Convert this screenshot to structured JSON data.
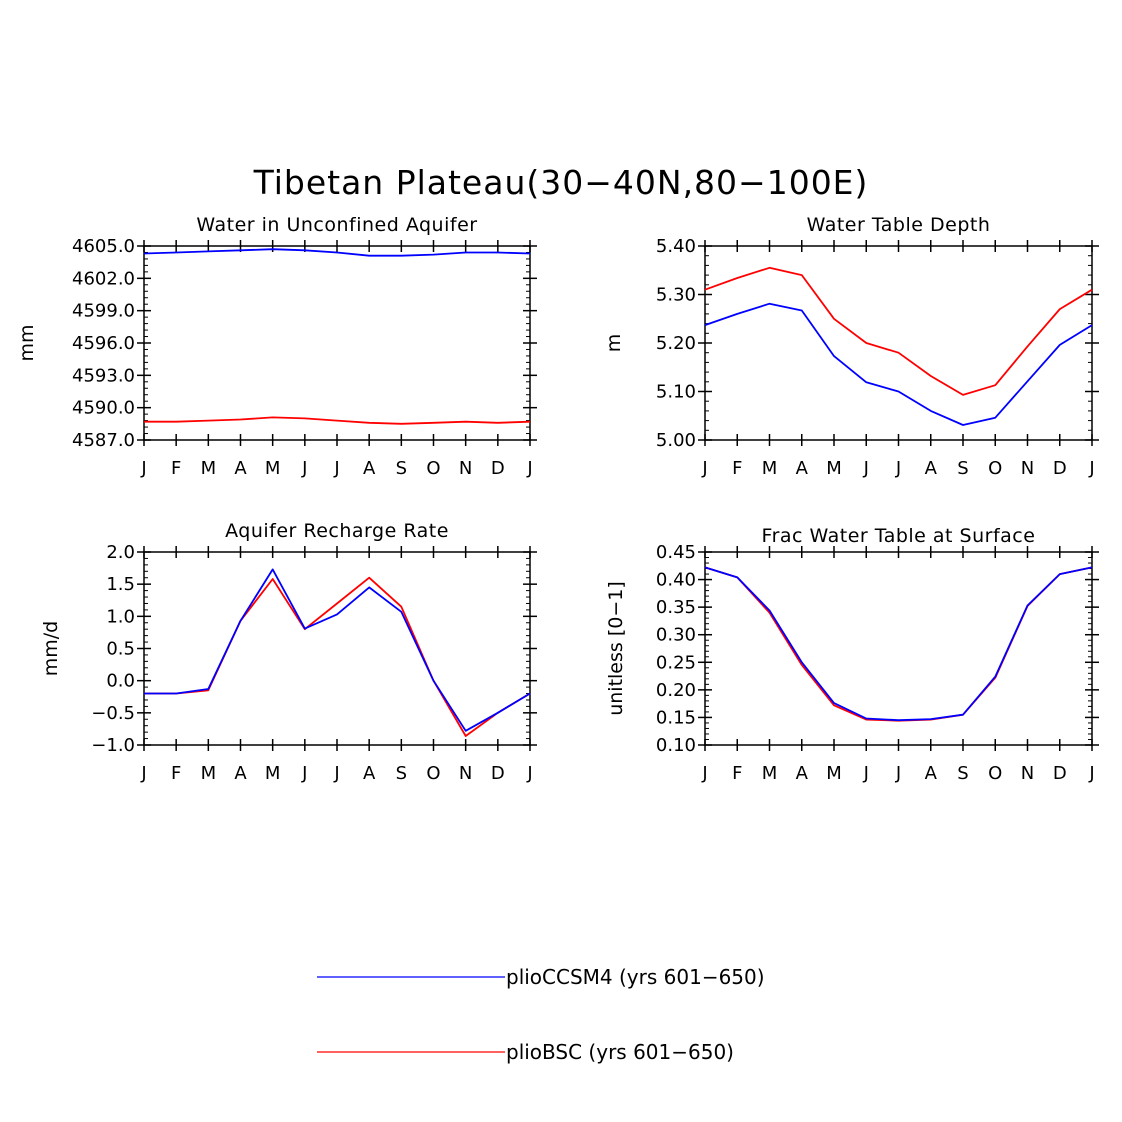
{
  "figure": {
    "title": "Tibetan Plateau(30−40N,80−100E)"
  },
  "colors": {
    "plioCCSM4": "#0000ff",
    "plioBSC": "#ff0000",
    "axes": "#000000"
  },
  "legend": {
    "items": [
      {
        "key": "plioCCSM4",
        "label": "plioCCSM4 (yrs 601−650)"
      },
      {
        "key": "plioBSC",
        "label": "plioBSC (yrs 601−650)"
      }
    ]
  },
  "chart_data": [
    {
      "type": "line",
      "title": "Water in Unconfined Aquifer",
      "ylabel": "mm",
      "xlabel": "",
      "categories": [
        "J",
        "F",
        "M",
        "A",
        "M",
        "J",
        "J",
        "A",
        "S",
        "O",
        "N",
        "D",
        "J"
      ],
      "ylim": [
        4587.0,
        4605.0
      ],
      "yticks": [
        4587.0,
        4590.0,
        4593.0,
        4596.0,
        4599.0,
        4602.0,
        4605.0
      ],
      "ytick_labels": [
        "4587.0",
        "4590.0",
        "4593.0",
        "4596.0",
        "4599.0",
        "4602.0",
        "4605.0"
      ],
      "series": [
        {
          "key": "plioCCSM4",
          "values": [
            4604.3,
            4604.4,
            4604.5,
            4604.6,
            4604.7,
            4604.6,
            4604.4,
            4604.1,
            4604.1,
            4604.2,
            4604.4,
            4604.4,
            4604.3
          ]
        },
        {
          "key": "plioBSC",
          "values": [
            4588.7,
            4588.7,
            4588.8,
            4588.9,
            4589.1,
            4589.0,
            4588.8,
            4588.6,
            4588.5,
            4588.6,
            4588.7,
            4588.6,
            4588.7
          ]
        }
      ]
    },
    {
      "type": "line",
      "title": "Water Table Depth",
      "ylabel": "m",
      "xlabel": "",
      "categories": [
        "J",
        "F",
        "M",
        "A",
        "M",
        "J",
        "J",
        "A",
        "S",
        "O",
        "N",
        "D",
        "J"
      ],
      "ylim": [
        5.0,
        5.4
      ],
      "yticks": [
        5.0,
        5.1,
        5.2,
        5.3,
        5.4
      ],
      "ytick_labels": [
        "5.00",
        "5.10",
        "5.20",
        "5.30",
        "5.40"
      ],
      "series": [
        {
          "key": "plioCCSM4",
          "values": [
            5.237,
            5.26,
            5.281,
            5.267,
            5.173,
            5.119,
            5.1,
            5.06,
            5.031,
            5.046,
            5.121,
            5.196,
            5.237
          ]
        },
        {
          "key": "plioBSC",
          "values": [
            5.31,
            5.334,
            5.355,
            5.34,
            5.25,
            5.2,
            5.18,
            5.132,
            5.093,
            5.113,
            5.193,
            5.27,
            5.31
          ]
        }
      ]
    },
    {
      "type": "line",
      "title": "Aquifer Recharge Rate",
      "ylabel": "mm/d",
      "xlabel": "",
      "categories": [
        "J",
        "F",
        "M",
        "A",
        "M",
        "J",
        "J",
        "A",
        "S",
        "O",
        "N",
        "D",
        "J"
      ],
      "ylim": [
        -1.0,
        2.0
      ],
      "yticks": [
        -1.0,
        -0.5,
        0.0,
        0.5,
        1.0,
        1.5,
        2.0
      ],
      "ytick_labels": [
        "−1.0",
        "−0.5",
        "0.0",
        "0.5",
        "1.0",
        "1.5",
        "2.0"
      ],
      "series": [
        {
          "key": "plioCCSM4",
          "values": [
            -0.2,
            -0.2,
            -0.13,
            0.93,
            1.73,
            0.81,
            1.03,
            1.45,
            1.07,
            0.0,
            -0.78,
            -0.5,
            -0.2
          ]
        },
        {
          "key": "plioBSC",
          "values": [
            -0.2,
            -0.2,
            -0.15,
            0.93,
            1.58,
            0.8,
            1.2,
            1.6,
            1.15,
            0.0,
            -0.86,
            -0.5,
            -0.2
          ]
        }
      ]
    },
    {
      "type": "line",
      "title": "Frac Water Table at Surface",
      "ylabel": "unitless [0−1]",
      "xlabel": "",
      "categories": [
        "J",
        "F",
        "M",
        "A",
        "M",
        "J",
        "J",
        "A",
        "S",
        "O",
        "N",
        "D",
        "J"
      ],
      "ylim": [
        0.1,
        0.45
      ],
      "yticks": [
        0.1,
        0.15,
        0.2,
        0.25,
        0.3,
        0.35,
        0.4,
        0.45
      ],
      "ytick_labels": [
        "0.10",
        "0.15",
        "0.20",
        "0.25",
        "0.30",
        "0.35",
        "0.40",
        "0.45"
      ],
      "series": [
        {
          "key": "plioCCSM4",
          "values": [
            0.422,
            0.404,
            0.344,
            0.25,
            0.176,
            0.148,
            0.145,
            0.147,
            0.155,
            0.224,
            0.353,
            0.41,
            0.422
          ]
        },
        {
          "key": "plioBSC",
          "values": [
            0.422,
            0.404,
            0.34,
            0.245,
            0.172,
            0.146,
            0.144,
            0.146,
            0.155,
            0.222,
            0.352,
            0.41,
            0.422
          ]
        }
      ]
    }
  ]
}
